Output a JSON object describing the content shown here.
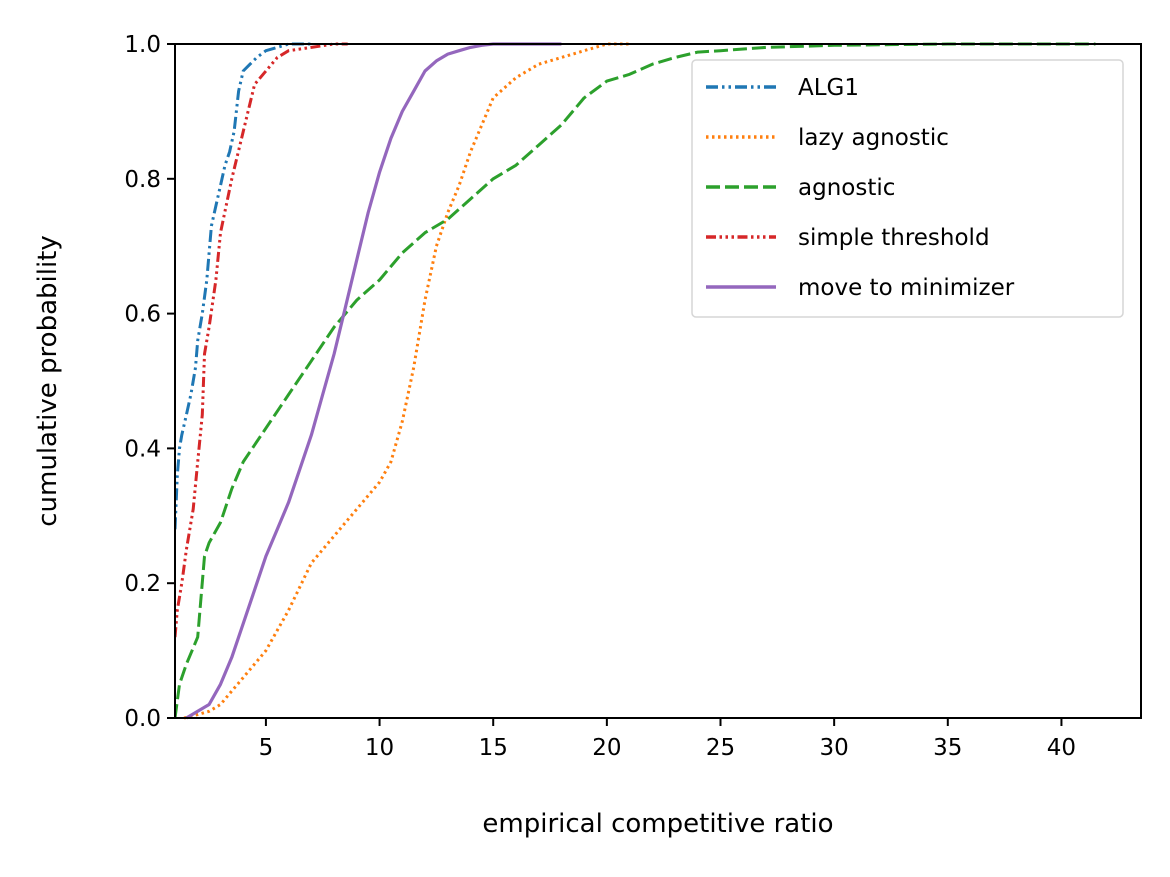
{
  "chart_data": {
    "type": "line",
    "title": "",
    "xlabel": "empirical competitive ratio",
    "ylabel": "cumulative probability",
    "xlim": [
      1,
      43.5
    ],
    "ylim": [
      0,
      1
    ],
    "xticks": [
      "5",
      "10",
      "15",
      "20",
      "25",
      "30",
      "35",
      "40"
    ],
    "yticks": [
      "0.0",
      "0.2",
      "0.4",
      "0.6",
      "0.8",
      "1.0"
    ],
    "grid": false,
    "legend_position": "top-right",
    "series": [
      {
        "name": "ALG1",
        "color": "#1f77b4",
        "dash": "dashdotdot",
        "x": [
          1.0,
          1.1,
          1.2,
          1.3,
          1.5,
          1.7,
          1.9,
          2.0,
          2.2,
          2.4,
          2.6,
          2.8,
          3.0,
          3.2,
          3.4,
          3.6,
          3.8,
          4.0,
          4.3,
          4.6,
          5.0,
          5.5,
          6.0,
          7.0
        ],
        "y": [
          0.28,
          0.36,
          0.4,
          0.42,
          0.45,
          0.48,
          0.52,
          0.56,
          0.6,
          0.65,
          0.73,
          0.76,
          0.79,
          0.82,
          0.84,
          0.87,
          0.93,
          0.96,
          0.97,
          0.98,
          0.99,
          0.995,
          1.0,
          1.0
        ]
      },
      {
        "name": "lazy agnostic",
        "color": "#ff7f0e",
        "dash": "dotted",
        "x": [
          1.4,
          2.0,
          2.5,
          3.0,
          3.5,
          4.0,
          5.0,
          6.0,
          7.0,
          8.0,
          9.0,
          10.0,
          10.5,
          11.0,
          11.5,
          12.0,
          12.5,
          13.0,
          13.5,
          14.0,
          15.0,
          16.0,
          17.0,
          18.0,
          19.0,
          20.0,
          21.0
        ],
        "y": [
          0.0,
          0.005,
          0.01,
          0.02,
          0.04,
          0.06,
          0.1,
          0.16,
          0.23,
          0.27,
          0.31,
          0.35,
          0.38,
          0.44,
          0.52,
          0.62,
          0.7,
          0.75,
          0.79,
          0.84,
          0.92,
          0.95,
          0.97,
          0.98,
          0.99,
          1.0,
          1.0
        ]
      },
      {
        "name": "agnostic",
        "color": "#2ca02c",
        "dash": "dashed",
        "x": [
          1.0,
          1.2,
          1.5,
          2.0,
          2.3,
          2.5,
          3.0,
          3.5,
          4.0,
          5.0,
          6.0,
          7.0,
          8.0,
          9.0,
          10.0,
          11.0,
          12.0,
          13.0,
          14.0,
          15.0,
          16.0,
          17.0,
          18.0,
          19.0,
          20.0,
          21.0,
          22.0,
          23.0,
          24.0,
          25.0,
          27.0,
          30.0,
          35.0,
          41.5
        ],
        "y": [
          0.0,
          0.05,
          0.08,
          0.12,
          0.24,
          0.26,
          0.29,
          0.34,
          0.38,
          0.43,
          0.48,
          0.53,
          0.58,
          0.62,
          0.65,
          0.69,
          0.72,
          0.74,
          0.77,
          0.8,
          0.82,
          0.85,
          0.88,
          0.92,
          0.945,
          0.955,
          0.97,
          0.98,
          0.988,
          0.99,
          0.995,
          0.998,
          1.0,
          1.0
        ]
      },
      {
        "name": "simple threshold",
        "color": "#d62728",
        "dash": "dashdotdotdot",
        "x": [
          1.0,
          1.1,
          1.3,
          1.5,
          1.8,
          2.0,
          2.2,
          2.3,
          2.5,
          2.8,
          3.0,
          3.5,
          4.0,
          4.5,
          5.0,
          5.5,
          6.0,
          7.0,
          8.0,
          8.6
        ],
        "y": [
          0.12,
          0.16,
          0.2,
          0.25,
          0.31,
          0.38,
          0.45,
          0.54,
          0.58,
          0.65,
          0.72,
          0.8,
          0.87,
          0.94,
          0.96,
          0.98,
          0.99,
          0.995,
          1.0,
          1.0
        ]
      },
      {
        "name": "move to minimizer",
        "color": "#9467bd",
        "dash": "solid",
        "x": [
          1.5,
          2.0,
          2.5,
          3.0,
          3.5,
          4.0,
          4.5,
          5.0,
          5.5,
          6.0,
          6.5,
          7.0,
          7.5,
          8.0,
          8.5,
          9.0,
          9.5,
          10.0,
          10.5,
          11.0,
          11.5,
          12.0,
          12.5,
          13.0,
          13.5,
          14.0,
          14.5,
          15.0,
          16.0,
          17.0,
          18.0
        ],
        "y": [
          0.0,
          0.01,
          0.02,
          0.05,
          0.09,
          0.14,
          0.19,
          0.24,
          0.28,
          0.32,
          0.37,
          0.42,
          0.48,
          0.54,
          0.61,
          0.68,
          0.75,
          0.81,
          0.86,
          0.9,
          0.93,
          0.96,
          0.975,
          0.985,
          0.99,
          0.995,
          0.998,
          1.0,
          1.0,
          1.0,
          1.0
        ]
      }
    ]
  }
}
